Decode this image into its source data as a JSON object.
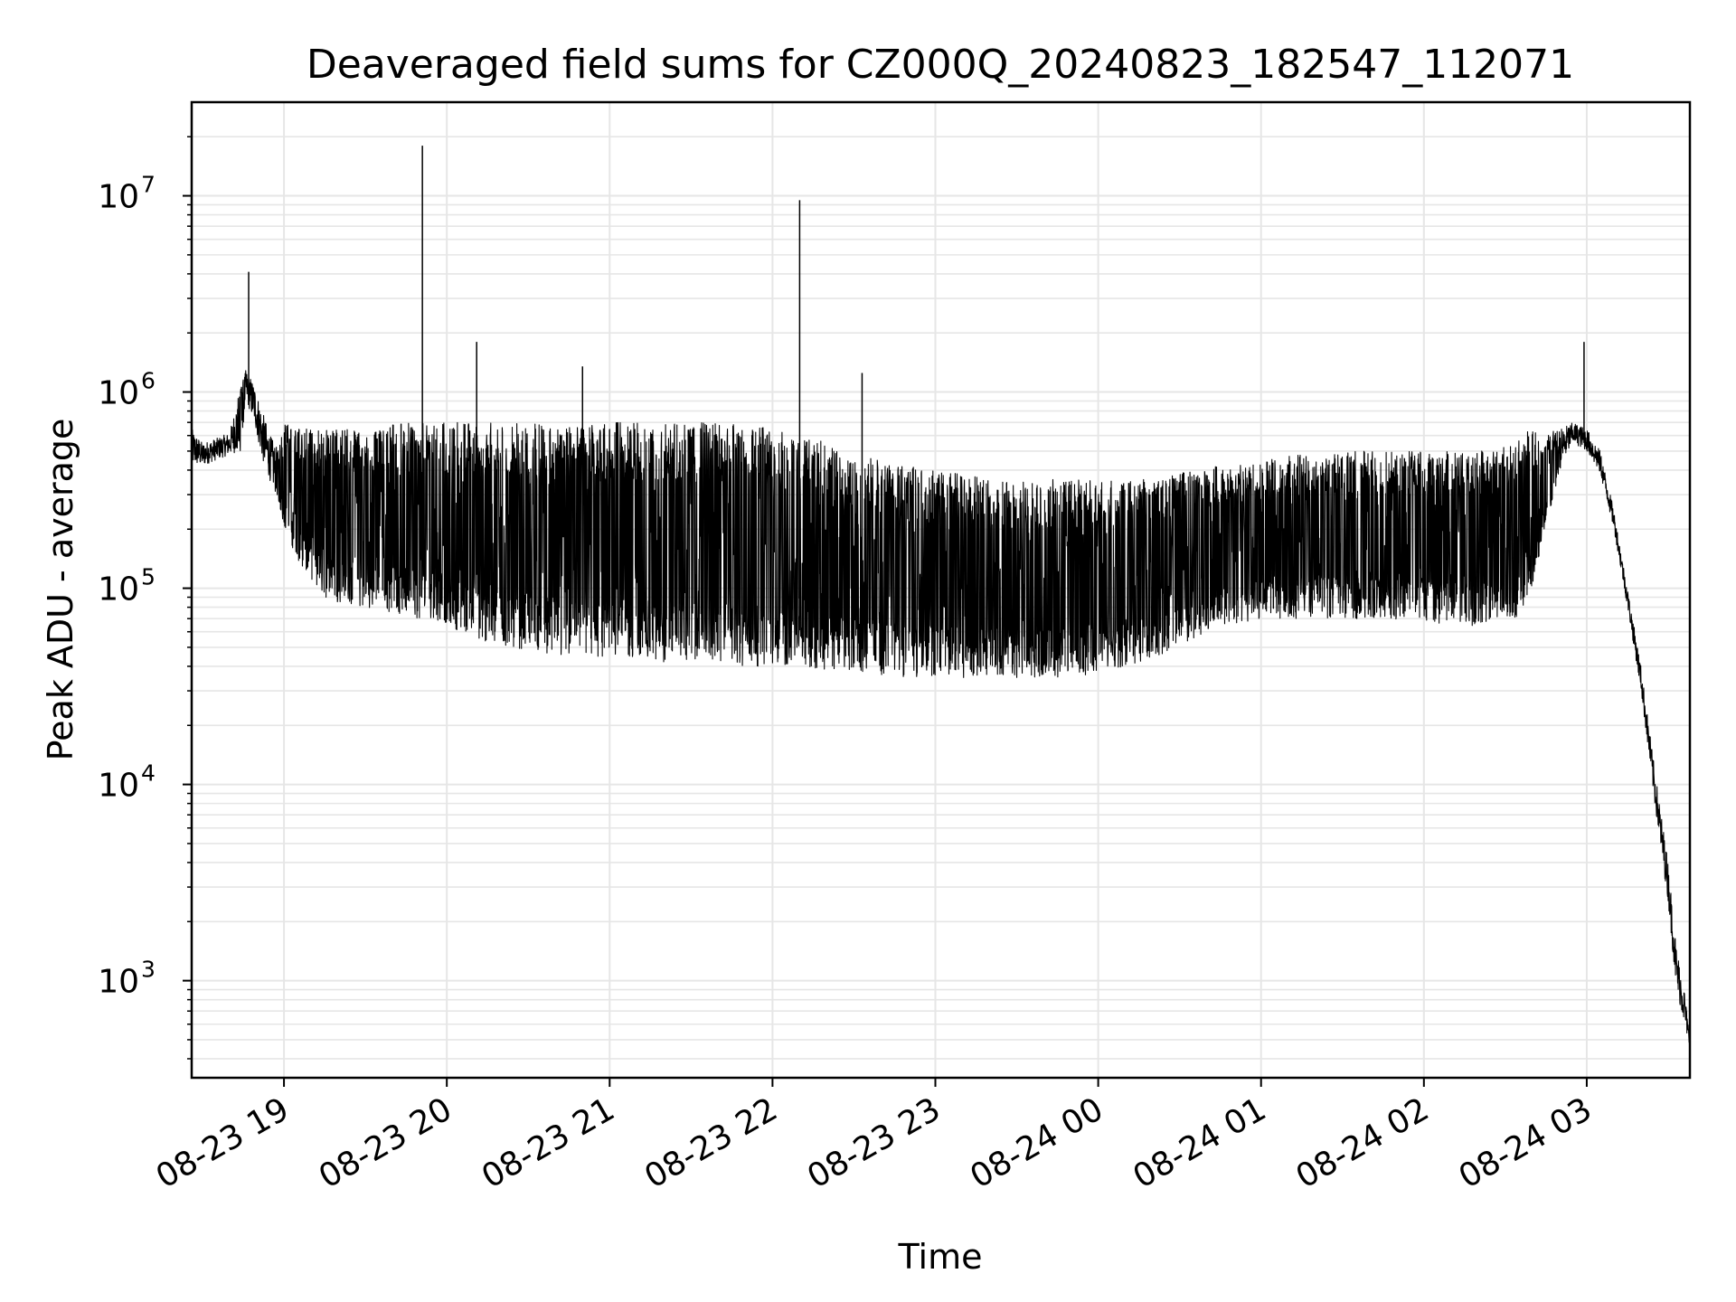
{
  "chart_data": {
    "type": "line",
    "title": "Deaveraged field sums for CZ000Q_20240823_182547_112071",
    "xlabel": "Time",
    "ylabel": "Peak ADU - average",
    "yscale": "log",
    "grid": true,
    "grid_minor": true,
    "line_color": "#000000",
    "grid_color": "#e6e6e6",
    "xlim": [
      "08-23 18:26",
      "08-24 03:38"
    ],
    "ylim": [
      320,
      30000000
    ],
    "x_ticks": [
      "08-23 19",
      "08-23 20",
      "08-23 21",
      "08-23 22",
      "08-23 23",
      "08-24 00",
      "08-24 01",
      "08-24 02",
      "08-24 03"
    ],
    "y_ticks": [
      {
        "base": "10",
        "exp": "3",
        "value": 1000
      },
      {
        "base": "10",
        "exp": "4",
        "value": 10000
      },
      {
        "base": "10",
        "exp": "5",
        "value": 100000
      },
      {
        "base": "10",
        "exp": "6",
        "value": 1000000
      },
      {
        "base": "10",
        "exp": "7",
        "value": 10000000
      }
    ],
    "series": [
      {
        "x": [
          "08-23 18:26",
          "08-23 18:30",
          "08-23 18:35",
          "08-23 18:40",
          "08-23 18:44",
          "08-23 18:46",
          "08-23 18:49",
          "08-23 18:52",
          "08-23 18:55",
          "08-23 18:58",
          "08-23 19:00",
          "08-23 19:05",
          "08-23 19:10",
          "08-23 19:15",
          "08-23 19:20",
          "08-23 19:25",
          "08-23 19:30",
          "08-23 19:35",
          "08-23 19:40",
          "08-23 19:45",
          "08-23 19:50",
          "08-23 19:55",
          "08-23 20:00",
          "08-23 20:05",
          "08-23 20:10",
          "08-23 20:15",
          "08-23 20:20",
          "08-23 20:25",
          "08-23 20:30",
          "08-23 20:35",
          "08-23 20:40",
          "08-23 20:45",
          "08-23 20:50",
          "08-23 20:55",
          "08-23 21:00",
          "08-23 21:05",
          "08-23 21:10",
          "08-23 21:15",
          "08-23 21:20",
          "08-23 21:25",
          "08-23 21:30",
          "08-23 21:35",
          "08-23 21:40",
          "08-23 21:45",
          "08-23 21:50",
          "08-23 21:55",
          "08-23 22:00",
          "08-23 22:05",
          "08-23 22:10",
          "08-23 22:15",
          "08-23 22:20",
          "08-23 22:25",
          "08-23 22:30",
          "08-23 22:35",
          "08-23 22:40",
          "08-23 22:45",
          "08-23 22:50",
          "08-23 22:55",
          "08-23 23:00",
          "08-23 23:05",
          "08-23 23:10",
          "08-23 23:15",
          "08-23 23:20",
          "08-23 23:25",
          "08-23 23:30",
          "08-23 23:35",
          "08-23 23:40",
          "08-23 23:45",
          "08-23 23:50",
          "08-23 23:55",
          "08-24 00:00",
          "08-24 00:05",
          "08-24 00:10",
          "08-24 00:15",
          "08-24 00:20",
          "08-24 00:25",
          "08-24 00:30",
          "08-24 00:35",
          "08-24 00:40",
          "08-24 00:45",
          "08-24 00:50",
          "08-24 00:55",
          "08-24 01:00",
          "08-24 01:05",
          "08-24 01:10",
          "08-24 01:15",
          "08-24 01:20",
          "08-24 01:25",
          "08-24 01:30",
          "08-24 01:35",
          "08-24 01:40",
          "08-24 01:45",
          "08-24 01:50",
          "08-24 01:55",
          "08-24 02:00",
          "08-24 02:05",
          "08-24 02:10",
          "08-24 02:15",
          "08-24 02:20",
          "08-24 02:25",
          "08-24 02:30",
          "08-24 02:35",
          "08-24 02:40",
          "08-24 02:45",
          "08-24 02:50",
          "08-24 02:55",
          "08-24 03:00",
          "08-24 03:05",
          "08-24 03:10",
          "08-24 03:15",
          "08-24 03:20",
          "08-24 03:25",
          "08-24 03:30",
          "08-24 03:33",
          "08-24 03:36",
          "08-24 03:38"
        ],
        "low": [
          420000,
          420000,
          450000,
          480000,
          500000,
          900000,
          700000,
          450000,
          350000,
          280000,
          200000,
          140000,
          110000,
          90000,
          85000,
          80000,
          80000,
          78000,
          75000,
          72000,
          70000,
          70000,
          65000,
          60000,
          55000,
          52000,
          50000,
          50000,
          48000,
          47000,
          46000,
          45000,
          45000,
          45000,
          44000,
          44000,
          43000,
          43000,
          42000,
          42000,
          42000,
          42000,
          42000,
          41000,
          40000,
          40000,
          40000,
          40000,
          39000,
          39000,
          38000,
          38000,
          38000,
          37000,
          36000,
          36000,
          35000,
          35000,
          35000,
          35000,
          35000,
          35000,
          35000,
          35000,
          35000,
          35000,
          35000,
          35000,
          36000,
          36000,
          37000,
          38000,
          40000,
          42000,
          44000,
          47000,
          50000,
          55000,
          60000,
          63000,
          65000,
          67000,
          68000,
          68000,
          70000,
          70000,
          70000,
          70000,
          70000,
          70000,
          70000,
          70000,
          68000,
          68000,
          68000,
          66000,
          65000,
          65000,
          64000,
          65000,
          68000,
          72000,
          100000,
          200000,
          400000,
          550000,
          500000,
          380000,
          200000,
          80000,
          30000,
          8000,
          2500,
          900,
          600,
          450
        ],
        "high": [
          650000,
          550000,
          580000,
          620000,
          1100000,
          1300000,
          1100000,
          800000,
          600000,
          500000,
          700000,
          650000,
          650000,
          650000,
          650000,
          650000,
          650000,
          650000,
          680000,
          700000,
          700000,
          700000,
          700000,
          700000,
          700000,
          700000,
          700000,
          700000,
          700000,
          700000,
          700000,
          700000,
          700000,
          700000,
          700000,
          700000,
          700000,
          700000,
          700000,
          700000,
          700000,
          700000,
          700000,
          700000,
          700000,
          680000,
          650000,
          620000,
          600000,
          580000,
          550000,
          520000,
          500000,
          470000,
          450000,
          430000,
          420000,
          410000,
          400000,
          390000,
          380000,
          370000,
          360000,
          360000,
          360000,
          360000,
          360000,
          360000,
          360000,
          360000,
          360000,
          360000,
          360000,
          360000,
          370000,
          380000,
          390000,
          400000,
          410000,
          420000,
          430000,
          440000,
          450000,
          460000,
          470000,
          480000,
          490000,
          500000,
          500000,
          500000,
          500000,
          500000,
          500000,
          500000,
          500000,
          500000,
          500000,
          500000,
          500000,
          500000,
          550000,
          600000,
          650000,
          650000,
          650000,
          700000,
          650000,
          500000,
          250000,
          100000,
          40000,
          12000,
          4000,
          1500,
          900,
          500
        ],
        "spikes": [
          {
            "x": "08-23 18:47",
            "y": 4100000
          },
          {
            "x": "08-23 19:51",
            "y": 18000000
          },
          {
            "x": "08-23 20:11",
            "y": 1800000
          },
          {
            "x": "08-23 20:50",
            "y": 1350000
          },
          {
            "x": "08-23 22:10",
            "y": 9500000
          },
          {
            "x": "08-23 22:33",
            "y": 1250000
          },
          {
            "x": "08-24 02:59",
            "y": 1800000
          }
        ]
      }
    ]
  }
}
